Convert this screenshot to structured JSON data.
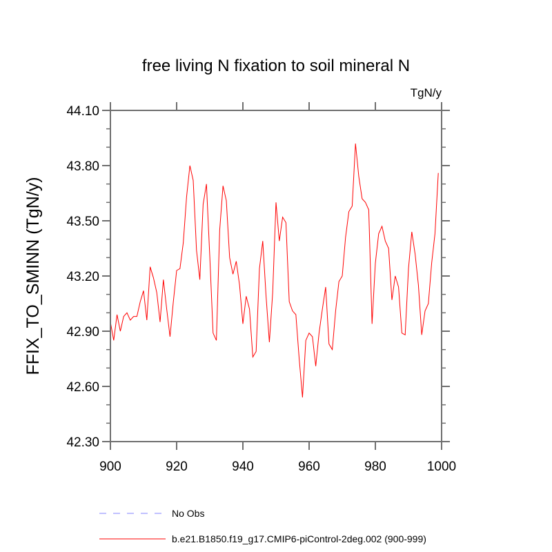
{
  "chart_data": {
    "type": "line",
    "title": "free living N fixation to soil mineral N",
    "units_label": "TgN/y",
    "xlabel": "",
    "ylabel": "FFIX_TO_SMINN  (TgN/y)",
    "xlim": [
      900,
      1000
    ],
    "ylim": [
      42.3,
      44.1
    ],
    "grid": false,
    "x_ticks": [
      900,
      920,
      940,
      960,
      980,
      1000
    ],
    "x_tick_labels": [
      "900",
      "920",
      "940",
      "960",
      "980",
      "1000"
    ],
    "y_ticks": [
      42.3,
      42.6,
      42.9,
      43.2,
      43.5,
      43.8,
      44.1
    ],
    "y_tick_labels": [
      "42.30",
      "42.60",
      "42.90",
      "43.20",
      "43.50",
      "43.80",
      "44.10"
    ],
    "y_minor_step": 0.1,
    "legend_position": "bottom-left",
    "legend": [
      {
        "label": "No Obs",
        "color": "#8080ff",
        "style": "dashed"
      },
      {
        "label": "b.e21.B1850.f19_g17.CMIP6-piControl-2deg.002 (900-999)",
        "color": "#ff0000",
        "style": "solid"
      }
    ],
    "series": [
      {
        "name": "b.e21.B1850.f19_g17.CMIP6-piControl-2deg.002 (900-999)",
        "color": "#ff0000",
        "x_start": 900,
        "x_step": 1,
        "values": [
          42.95,
          42.85,
          42.99,
          42.9,
          42.98,
          43.0,
          42.96,
          42.98,
          42.98,
          43.06,
          43.12,
          42.96,
          43.25,
          43.19,
          43.11,
          42.95,
          43.18,
          43.02,
          42.87,
          43.06,
          43.23,
          43.24,
          43.38,
          43.63,
          43.8,
          43.72,
          43.34,
          43.18,
          43.59,
          43.7,
          43.31,
          42.89,
          42.85,
          43.45,
          43.69,
          43.61,
          43.3,
          43.21,
          43.28,
          43.15,
          42.94,
          43.09,
          43.02,
          42.76,
          42.79,
          43.24,
          43.39,
          43.09,
          42.84,
          43.11,
          43.6,
          43.39,
          43.52,
          43.49,
          43.06,
          43.01,
          42.99,
          42.75,
          42.54,
          42.85,
          42.89,
          42.87,
          42.71,
          42.89,
          43.02,
          43.14,
          42.83,
          42.8,
          43.01,
          43.17,
          43.2,
          43.41,
          43.55,
          43.58,
          43.92,
          43.74,
          43.62,
          43.6,
          43.56,
          42.94,
          43.27,
          43.43,
          43.47,
          43.39,
          43.35,
          43.07,
          43.2,
          43.14,
          42.89,
          42.88,
          43.24,
          43.44,
          43.32,
          43.15,
          42.88,
          43.01,
          43.05,
          43.27,
          43.43,
          43.76
        ]
      }
    ]
  }
}
